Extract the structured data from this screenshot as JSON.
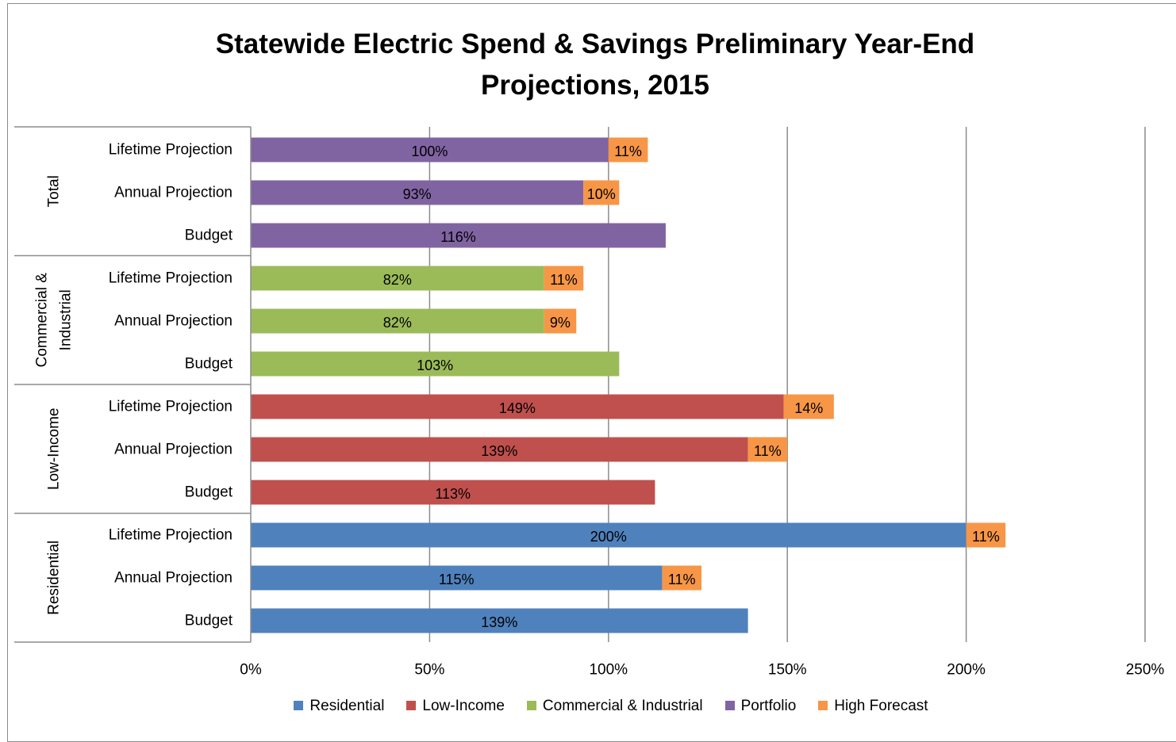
{
  "chart_data": {
    "type": "bar",
    "orientation": "horizontal",
    "stacked": true,
    "title": "Statewide Electric Spend & Savings Preliminary Year-End Projections, 2015",
    "title_lines": [
      "Statewide Electric Spend & Savings Preliminary Year-End",
      "Projections, 2015"
    ],
    "xlim": [
      0,
      250
    ],
    "x_ticks": [
      0,
      50,
      100,
      150,
      200,
      250
    ],
    "x_tick_labels": [
      "0%",
      "50%",
      "100%",
      "150%",
      "200%",
      "250%"
    ],
    "grid": "vertical",
    "legend_position": "bottom",
    "legend": [
      {
        "name": "Residential",
        "color": "#4f81bd"
      },
      {
        "name": "Low-Income",
        "color": "#c0504d"
      },
      {
        "name": "Commercial & Industrial",
        "color": "#9bbb59"
      },
      {
        "name": "Portfolio",
        "color": "#8064a2"
      },
      {
        "name": "High Forecast",
        "color": "#f79646"
      }
    ],
    "groups": [
      {
        "name": "Total",
        "group_lines": [
          "Total"
        ],
        "color": "#8064a2",
        "bars": [
          {
            "category": "Lifetime Projection",
            "value": 100,
            "value_label": "100%",
            "forecast": 11,
            "forecast_label": "11%"
          },
          {
            "category": "Annual Projection",
            "value": 93,
            "value_label": "93%",
            "forecast": 10,
            "forecast_label": "10%"
          },
          {
            "category": "Budget",
            "value": 116,
            "value_label": "116%",
            "forecast": null,
            "forecast_label": ""
          }
        ]
      },
      {
        "name": "Commercial & Industrial",
        "group_lines": [
          "Commercial &",
          "Industrial"
        ],
        "color": "#9bbb59",
        "bars": [
          {
            "category": "Lifetime Projection",
            "value": 82,
            "value_label": "82%",
            "forecast": 11,
            "forecast_label": "11%"
          },
          {
            "category": "Annual Projection",
            "value": 82,
            "value_label": "82%",
            "forecast": 9,
            "forecast_label": "9%"
          },
          {
            "category": "Budget",
            "value": 103,
            "value_label": "103%",
            "forecast": null,
            "forecast_label": ""
          }
        ]
      },
      {
        "name": "Low-Income",
        "group_lines": [
          "Low-Income"
        ],
        "color": "#c0504d",
        "bars": [
          {
            "category": "Lifetime Projection",
            "value": 149,
            "value_label": "149%",
            "forecast": 14,
            "forecast_label": "14%"
          },
          {
            "category": "Annual Projection",
            "value": 139,
            "value_label": "139%",
            "forecast": 11,
            "forecast_label": "11%"
          },
          {
            "category": "Budget",
            "value": 113,
            "value_label": "113%",
            "forecast": null,
            "forecast_label": ""
          }
        ]
      },
      {
        "name": "Residential",
        "group_lines": [
          "Residential"
        ],
        "color": "#4f81bd",
        "bars": [
          {
            "category": "Lifetime Projection",
            "value": 200,
            "value_label": "200%",
            "forecast": 11,
            "forecast_label": "11%"
          },
          {
            "category": "Annual Projection",
            "value": 115,
            "value_label": "115%",
            "forecast": 11,
            "forecast_label": "11%"
          },
          {
            "category": "Budget",
            "value": 139,
            "value_label": "139%",
            "forecast": null,
            "forecast_label": ""
          }
        ]
      }
    ],
    "forecast_color": "#f79646"
  }
}
